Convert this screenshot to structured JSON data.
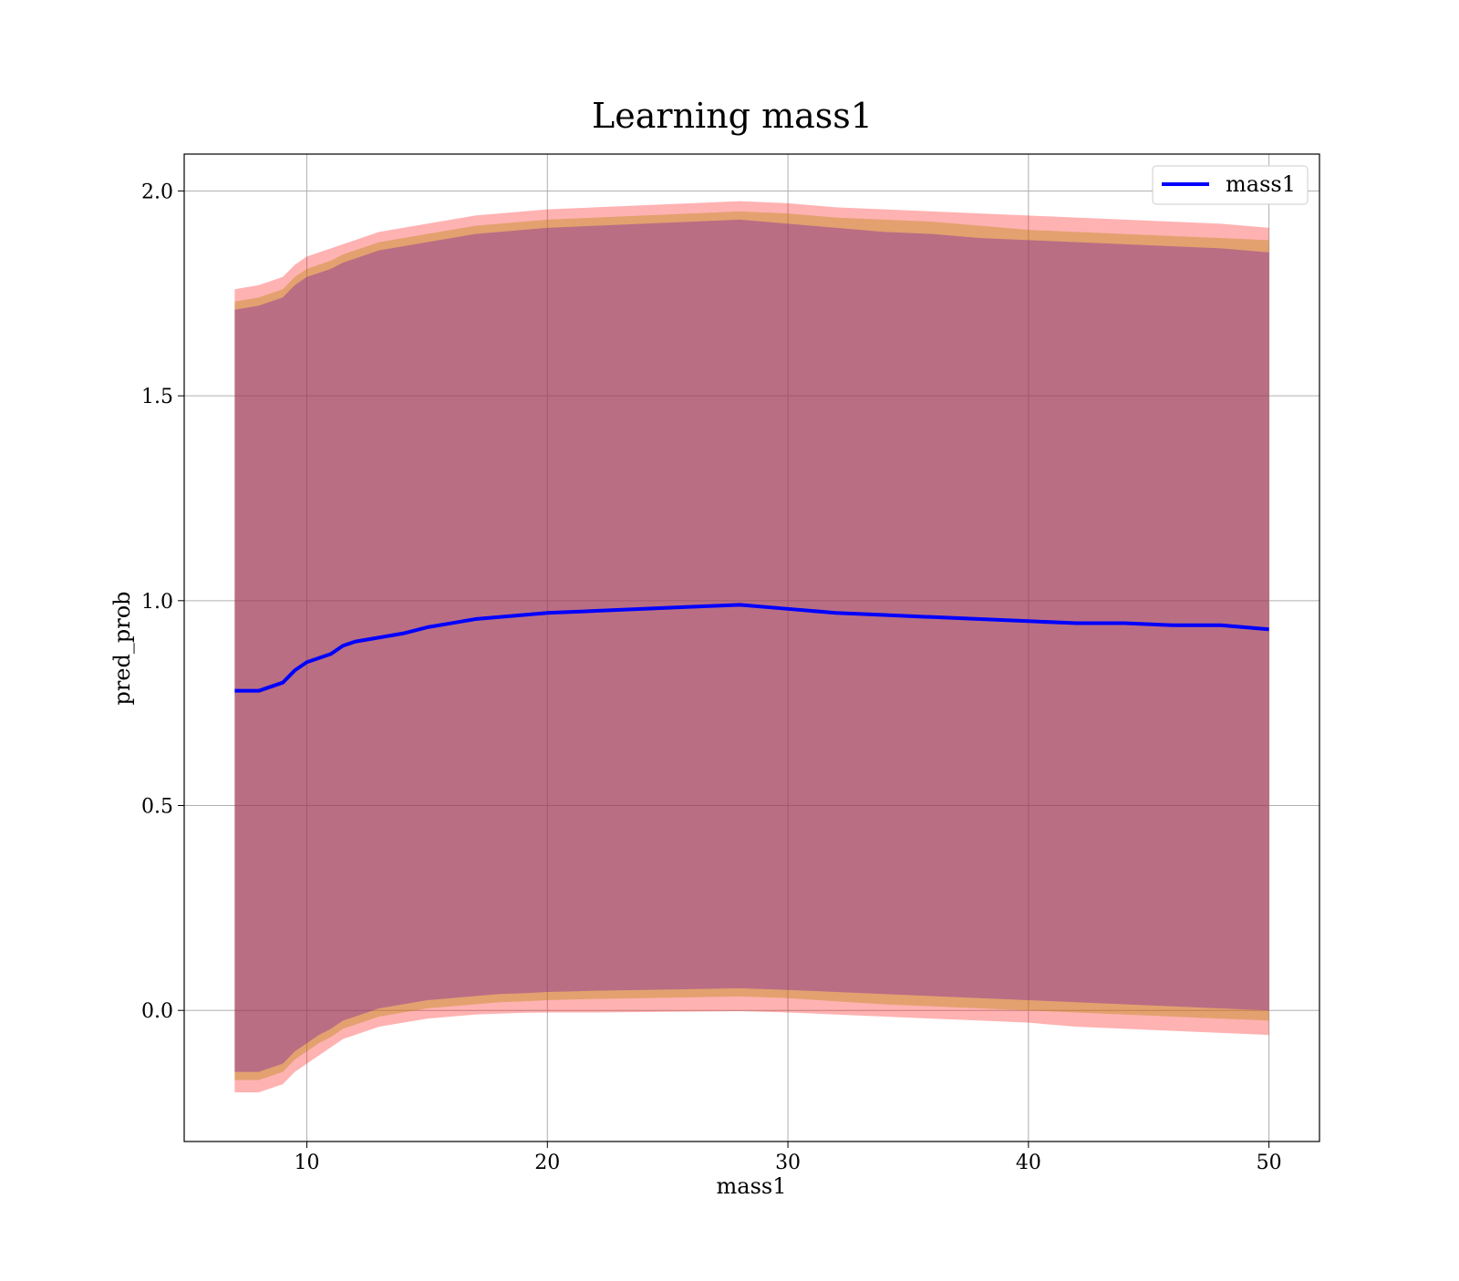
{
  "chart_data": {
    "type": "line",
    "title": "Learning mass1",
    "xlabel": "mass1",
    "ylabel": "pred_prob",
    "xlim": [
      4.9,
      52.1
    ],
    "ylim": [
      -0.32,
      2.09
    ],
    "xticks": [
      10,
      20,
      30,
      40,
      50
    ],
    "yticks": [
      0.0,
      0.5,
      1.0,
      1.5,
      2.0
    ],
    "xtick_labels": [
      "10",
      "20",
      "30",
      "40",
      "50"
    ],
    "ytick_labels": [
      "0.0",
      "0.5",
      "1.0",
      "1.5",
      "2.0"
    ],
    "grid": true,
    "legend": {
      "location": "top-right",
      "entries": [
        "mass1"
      ]
    },
    "series": [
      {
        "name": "mass1",
        "color": "#0000ff",
        "x": [
          7,
          8,
          9,
          9.5,
          10,
          10.5,
          11,
          11.5,
          12,
          13,
          14,
          15,
          16,
          17,
          18,
          19,
          20,
          22,
          24,
          26,
          28,
          30,
          32,
          34,
          36,
          38,
          40,
          42,
          44,
          46,
          48,
          50
        ],
        "y": [
          0.78,
          0.78,
          0.8,
          0.83,
          0.85,
          0.86,
          0.87,
          0.89,
          0.9,
          0.91,
          0.92,
          0.935,
          0.945,
          0.955,
          0.96,
          0.965,
          0.97,
          0.975,
          0.98,
          0.985,
          0.99,
          0.98,
          0.97,
          0.965,
          0.96,
          0.955,
          0.95,
          0.945,
          0.945,
          0.94,
          0.94,
          0.93
        ]
      }
    ],
    "bands": [
      {
        "color": "#ff0000",
        "opacity": 0.3,
        "x": [
          7,
          8,
          9,
          9.5,
          10,
          10.5,
          11,
          11.5,
          12,
          13,
          14,
          15,
          16,
          17,
          18,
          19,
          20,
          22,
          24,
          26,
          28,
          30,
          32,
          34,
          36,
          38,
          40,
          42,
          44,
          46,
          48,
          50
        ],
        "upper": [
          1.76,
          1.77,
          1.79,
          1.82,
          1.84,
          1.85,
          1.86,
          1.87,
          1.88,
          1.9,
          1.91,
          1.92,
          1.93,
          1.94,
          1.945,
          1.95,
          1.955,
          1.96,
          1.965,
          1.97,
          1.975,
          1.97,
          1.96,
          1.955,
          1.95,
          1.945,
          1.94,
          1.935,
          1.93,
          1.925,
          1.92,
          1.91
        ],
        "lower": [
          -0.2,
          -0.2,
          -0.18,
          -0.15,
          -0.13,
          -0.11,
          -0.09,
          -0.07,
          -0.06,
          -0.04,
          -0.03,
          -0.02,
          -0.015,
          -0.01,
          -0.008,
          -0.006,
          -0.005,
          -0.005,
          -0.004,
          -0.003,
          -0.002,
          -0.005,
          -0.01,
          -0.015,
          -0.02,
          -0.025,
          -0.03,
          -0.04,
          -0.045,
          -0.05,
          -0.055,
          -0.06
        ]
      },
      {
        "color": "#b8860b",
        "opacity": 0.4,
        "x": [
          7,
          8,
          9,
          9.5,
          10,
          10.5,
          11,
          11.5,
          12,
          13,
          14,
          15,
          16,
          17,
          18,
          19,
          20,
          22,
          24,
          26,
          28,
          30,
          32,
          34,
          36,
          38,
          40,
          42,
          44,
          46,
          48,
          50
        ],
        "upper": [
          1.73,
          1.74,
          1.76,
          1.79,
          1.81,
          1.82,
          1.83,
          1.845,
          1.855,
          1.875,
          1.885,
          1.895,
          1.905,
          1.915,
          1.92,
          1.925,
          1.93,
          1.935,
          1.94,
          1.945,
          1.95,
          1.945,
          1.935,
          1.93,
          1.925,
          1.915,
          1.905,
          1.9,
          1.895,
          1.89,
          1.885,
          1.88
        ],
        "lower": [
          -0.17,
          -0.17,
          -0.15,
          -0.12,
          -0.1,
          -0.08,
          -0.065,
          -0.045,
          -0.035,
          -0.015,
          -0.005,
          0.005,
          0.01,
          0.015,
          0.02,
          0.022,
          0.025,
          0.028,
          0.03,
          0.032,
          0.034,
          0.03,
          0.022,
          0.015,
          0.01,
          0.005,
          0.0,
          -0.005,
          -0.01,
          -0.015,
          -0.02,
          -0.025
        ]
      },
      {
        "color": "#6a0dad",
        "opacity": 0.35,
        "x": [
          7,
          8,
          9,
          9.5,
          10,
          10.5,
          11,
          11.5,
          12,
          13,
          14,
          15,
          16,
          17,
          18,
          19,
          20,
          22,
          24,
          26,
          28,
          30,
          32,
          34,
          36,
          38,
          40,
          42,
          44,
          46,
          48,
          50
        ],
        "upper": [
          1.71,
          1.72,
          1.74,
          1.77,
          1.79,
          1.8,
          1.81,
          1.825,
          1.835,
          1.855,
          1.865,
          1.875,
          1.885,
          1.895,
          1.9,
          1.905,
          1.91,
          1.915,
          1.92,
          1.925,
          1.93,
          1.92,
          1.91,
          1.9,
          1.895,
          1.885,
          1.88,
          1.875,
          1.87,
          1.865,
          1.86,
          1.85
        ],
        "lower": [
          -0.15,
          -0.15,
          -0.13,
          -0.1,
          -0.08,
          -0.06,
          -0.045,
          -0.025,
          -0.015,
          0.005,
          0.015,
          0.025,
          0.03,
          0.035,
          0.04,
          0.042,
          0.045,
          0.048,
          0.05,
          0.052,
          0.054,
          0.05,
          0.045,
          0.04,
          0.035,
          0.03,
          0.025,
          0.02,
          0.015,
          0.01,
          0.005,
          0.0
        ]
      }
    ]
  }
}
